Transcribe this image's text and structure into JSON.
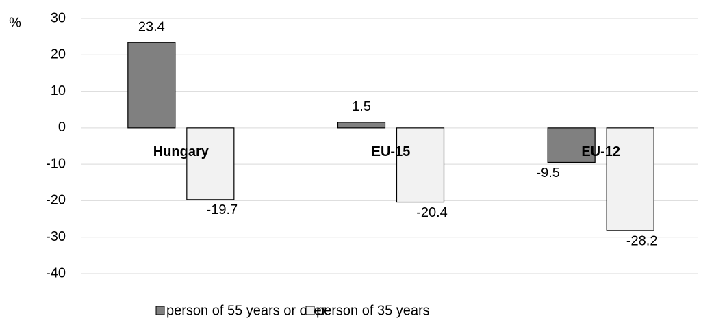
{
  "chart_data": {
    "type": "bar",
    "y_label": "%",
    "categories": [
      "Hungary",
      "EU-15",
      "EU-12"
    ],
    "series": [
      {
        "name": "person of 55 years or over",
        "color": "#808080",
        "values": [
          23.4,
          1.5,
          -9.5
        ]
      },
      {
        "name": "person of 35 years",
        "color": "#f2f2f2",
        "values": [
          -19.7,
          -20.4,
          -28.2
        ]
      }
    ],
    "ylim": [
      -40,
      30
    ],
    "yticks": [
      -40,
      -30,
      -20,
      -10,
      0,
      10,
      20,
      30
    ],
    "grid": true,
    "legend": "bottom"
  }
}
